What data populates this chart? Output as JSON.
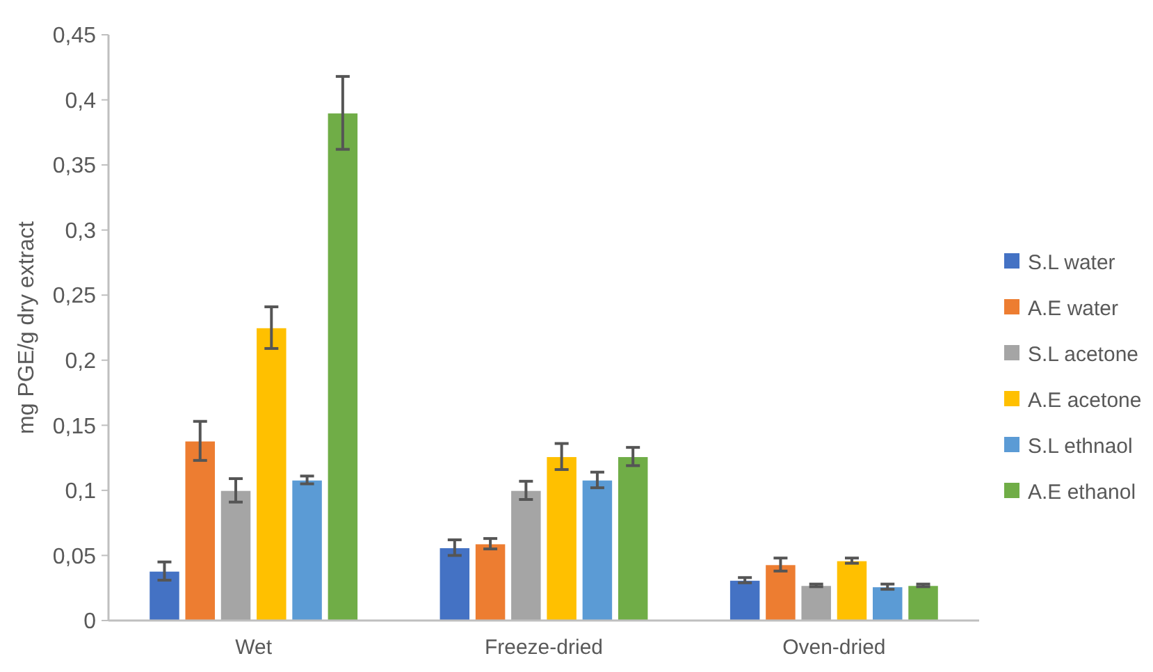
{
  "chart_data": {
    "type": "bar",
    "ylabel": "mg PGE/g dry extract",
    "categories": [
      "Wet",
      "Freeze-dried",
      "Oven-dried"
    ],
    "series": [
      {
        "name": "S.L water",
        "color": "#4472c4",
        "values": [
          0.038,
          0.056,
          0.031
        ],
        "errors": [
          0.007,
          0.006,
          0.002
        ]
      },
      {
        "name": "A.E water",
        "color": "#ed7d31",
        "values": [
          0.138,
          0.059,
          0.043
        ],
        "errors": [
          0.015,
          0.004,
          0.005
        ]
      },
      {
        "name": "S.L acetone",
        "color": "#a5a5a5",
        "values": [
          0.1,
          0.1,
          0.027
        ],
        "errors": [
          0.009,
          0.007,
          0.001
        ]
      },
      {
        "name": "A.E acetone",
        "color": "#ffc000",
        "values": [
          0.225,
          0.126,
          0.046
        ],
        "errors": [
          0.016,
          0.01,
          0.002
        ]
      },
      {
        "name": "S.L ethnaol",
        "color": "#5b9bd5",
        "values": [
          0.108,
          0.108,
          0.026
        ],
        "errors": [
          0.003,
          0.006,
          0.002
        ]
      },
      {
        "name": "A.E ethanol",
        "color": "#70ad47",
        "values": [
          0.39,
          0.126,
          0.027
        ],
        "errors": [
          0.028,
          0.007,
          0.001
        ]
      }
    ],
    "ylim": [
      0,
      0.45
    ],
    "yticks": [
      0,
      {
        "value": 0.05,
        "label": "0,05"
      },
      {
        "value": 0.1,
        "label": "0,1"
      },
      {
        "value": 0.15,
        "label": "0,15"
      },
      {
        "value": 0.2,
        "label": "0,2"
      },
      {
        "value": 0.25,
        "label": "0,25"
      },
      {
        "value": 0.3,
        "label": "0,3"
      },
      {
        "value": 0.35,
        "label": "0,35"
      },
      {
        "value": 0.4,
        "label": "0,4"
      },
      {
        "value": 0.45,
        "label": "0,45"
      }
    ],
    "grid": false,
    "legend": "right"
  }
}
